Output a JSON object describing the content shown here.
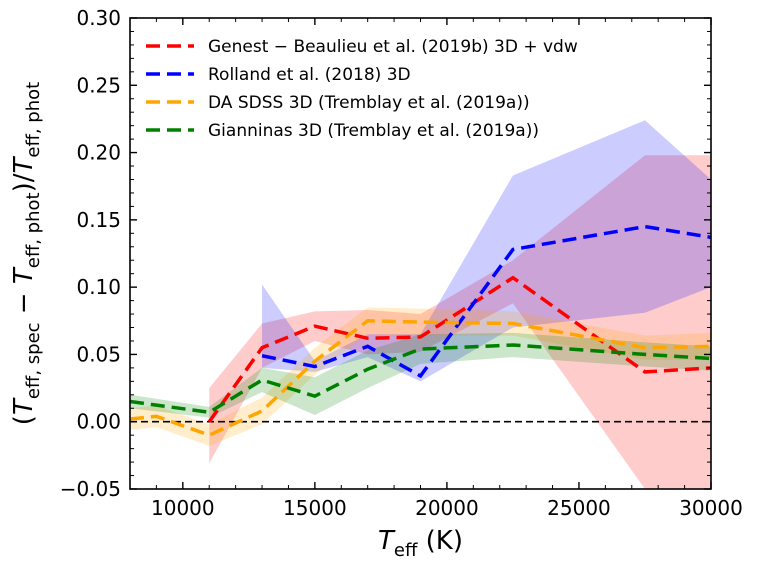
{
  "chart_data": {
    "type": "line",
    "xlabel": "T_eff (K)",
    "ylabel": "(T_eff, spec − T_eff, phot)/T_eff, phot",
    "xlim": [
      8000,
      30000
    ],
    "ylim": [
      -0.05,
      0.3
    ],
    "x_ticks": [
      10000,
      15000,
      20000,
      25000,
      30000
    ],
    "y_ticks": [
      -0.05,
      0.0,
      0.05,
      0.1,
      0.15,
      0.2,
      0.25,
      0.3
    ],
    "x_tick_labels": [
      "10000",
      "15000",
      "20000",
      "25000",
      "30000"
    ],
    "y_tick_labels": [
      "−0.05",
      "0.00",
      "0.05",
      "0.10",
      "0.15",
      "0.20",
      "0.25",
      "0.30"
    ],
    "reference_line": {
      "y": 0.0,
      "style": "dashed",
      "color": "#000000"
    },
    "legend_position": "top-left",
    "series": [
      {
        "name": "Genest − Beaulieu et al. (2019b) 3D + vdw",
        "color": "#ff0000",
        "x": [
          11000,
          13000,
          15000,
          17000,
          19000,
          22500,
          27500,
          30000
        ],
        "y": [
          0.0,
          0.055,
          0.071,
          0.062,
          0.063,
          0.107,
          0.037,
          0.04
        ],
        "upper": [
          0.025,
          0.073,
          0.082,
          0.083,
          0.08,
          0.12,
          0.198,
          0.198
        ],
        "lower": [
          -0.031,
          0.04,
          0.06,
          0.05,
          0.052,
          0.088,
          -0.05,
          -0.05
        ]
      },
      {
        "name": "Rolland et al. (2018) 3D",
        "color": "#0000ff",
        "x": [
          13000,
          15000,
          17000,
          19000,
          22500,
          27500,
          30000
        ],
        "y": [
          0.049,
          0.041,
          0.056,
          0.034,
          0.128,
          0.145,
          0.137
        ],
        "upper": [
          0.102,
          0.045,
          0.065,
          0.065,
          0.183,
          0.224,
          0.18
        ],
        "lower": [
          0.04,
          0.037,
          0.048,
          0.03,
          0.07,
          0.081,
          0.1
        ]
      },
      {
        "name": "DA SDSS 3D (Tremblay et al. (2019a))",
        "color": "#ffa500",
        "x": [
          8000,
          9000,
          11000,
          13000,
          15000,
          17000,
          19000,
          22500,
          27500,
          30000
        ],
        "y": [
          0.002,
          0.004,
          -0.01,
          0.008,
          0.045,
          0.075,
          0.074,
          0.073,
          0.055,
          0.056
        ],
        "upper": [
          0.01,
          0.012,
          -0.002,
          0.018,
          0.055,
          0.085,
          0.084,
          0.082,
          0.064,
          0.066
        ],
        "lower": [
          -0.006,
          -0.004,
          -0.018,
          -0.002,
          0.035,
          0.065,
          0.064,
          0.064,
          0.046,
          0.046
        ]
      },
      {
        "name": "Gianninas 3D (Tremblay et al. (2019a))",
        "color": "#008000",
        "x": [
          8000,
          11000,
          13000,
          15000,
          17000,
          19000,
          22500,
          27500,
          30000
        ],
        "y": [
          0.015,
          0.007,
          0.031,
          0.019,
          0.039,
          0.054,
          0.057,
          0.05,
          0.047
        ],
        "upper": [
          0.02,
          0.011,
          0.04,
          0.033,
          0.053,
          0.065,
          0.066,
          0.059,
          0.056
        ],
        "lower": [
          0.01,
          0.003,
          0.022,
          0.005,
          0.025,
          0.043,
          0.048,
          0.041,
          0.038
        ]
      }
    ]
  }
}
